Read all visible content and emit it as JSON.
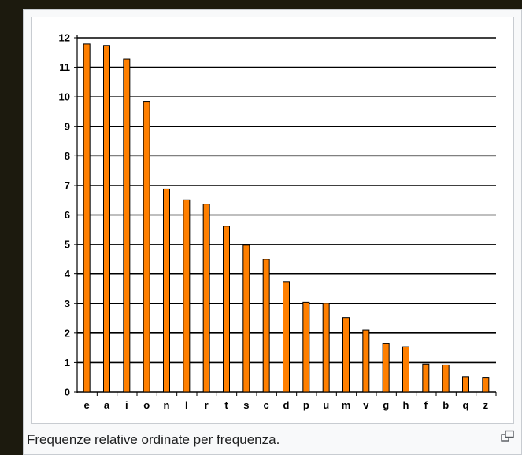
{
  "figure": {
    "caption": "Frequenze relative ordinate per frequenza.",
    "magnify_icon": "enlarge-icon"
  },
  "colors": {
    "bar_fill": "#ff7f00",
    "bar_stroke": "#000000",
    "grid": "#000000",
    "text": "#000000",
    "background": "#ffffff"
  },
  "chart_data": {
    "type": "bar",
    "title": "",
    "xlabel": "",
    "ylabel": "",
    "categories": [
      "e",
      "a",
      "i",
      "o",
      "n",
      "l",
      "r",
      "t",
      "s",
      "c",
      "d",
      "p",
      "u",
      "m",
      "v",
      "g",
      "h",
      "f",
      "b",
      "q",
      "z"
    ],
    "values": [
      11.79,
      11.74,
      11.28,
      9.83,
      6.88,
      6.51,
      6.37,
      5.62,
      4.98,
      4.5,
      3.73,
      3.05,
      3.01,
      2.51,
      2.1,
      1.64,
      1.54,
      0.95,
      0.92,
      0.51,
      0.49
    ],
    "ylim": [
      0,
      12
    ],
    "yticks": [
      "0",
      "1",
      "2",
      "3",
      "4",
      "5",
      "6",
      "7",
      "8",
      "9",
      "10",
      "11",
      "12"
    ],
    "grid": true,
    "legend": false
  }
}
